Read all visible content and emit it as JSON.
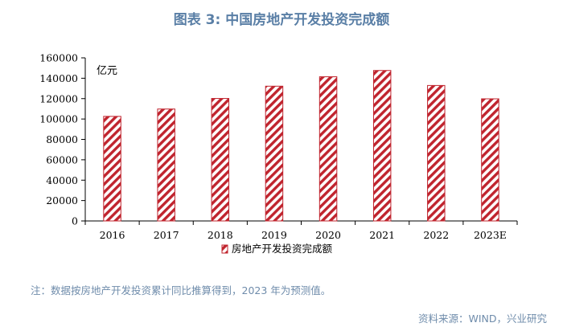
{
  "figure": {
    "title": "图表 3:  中国房地产开发投资完成额",
    "note": "注：数据按房地产开发投资累计同比推算得到，2023 年为预测值。",
    "source": "资料来源：WIND，兴业研究"
  },
  "chart_data": {
    "type": "bar",
    "categories": [
      "2016",
      "2017",
      "2018",
      "2019",
      "2020",
      "2021",
      "2022",
      "2023E"
    ],
    "series": [
      {
        "name": "房地产开发投资完成额",
        "values": [
          102581,
          109799,
          120165,
          132194,
          141443,
          147602,
          132895,
          119800
        ]
      }
    ],
    "unit_label": "亿元",
    "ylim": [
      0,
      160000
    ],
    "yticks": [
      0,
      20000,
      40000,
      60000,
      80000,
      100000,
      120000,
      140000,
      160000
    ],
    "grid": false,
    "legend": "bottom-center",
    "colors": {
      "stripe": "#c0242e",
      "background": "#ffffff",
      "axis": "#000000"
    }
  }
}
